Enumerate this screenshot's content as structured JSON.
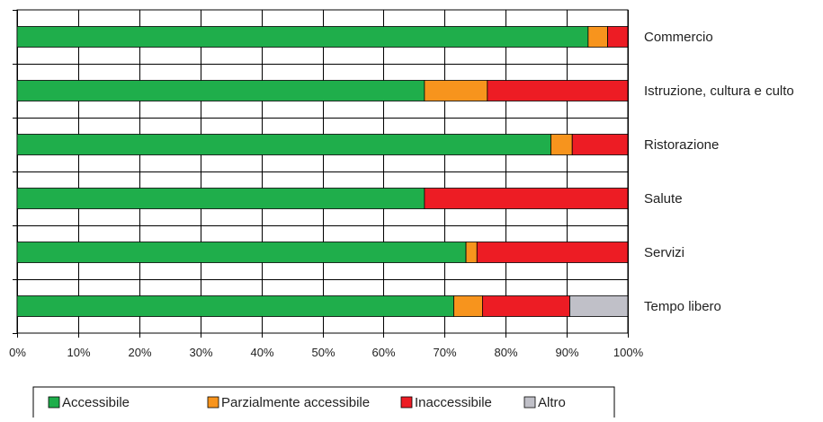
{
  "chart_data": {
    "type": "bar",
    "orientation": "horizontal",
    "stacked": true,
    "percent_stacked": true,
    "title": "",
    "xlabel": "",
    "ylabel": "",
    "xlim": [
      0,
      100
    ],
    "x_ticks": [
      "0%",
      "10%",
      "20%",
      "30%",
      "40%",
      "50%",
      "60%",
      "70%",
      "80%",
      "90%",
      "100%"
    ],
    "grid": {
      "vertical": true,
      "horizontal": true
    },
    "legend_position": "bottom",
    "category_label_position": "right",
    "categories": [
      "Commercio",
      "Istruzione, cultura e culto",
      "Ristorazione",
      "Salute",
      "Servizi",
      "Tempo libero"
    ],
    "series": [
      {
        "name": "Accessibile",
        "color": "#1fae4b",
        "values": [
          93.5,
          66.7,
          87.4,
          66.7,
          73.5,
          71.5
        ]
      },
      {
        "name": "Parzialmente accessibile",
        "color": "#f7941d",
        "values": [
          3.2,
          10.3,
          3.5,
          0.0,
          1.8,
          4.7
        ]
      },
      {
        "name": "Inaccessibile",
        "color": "#ed1c24",
        "values": [
          3.3,
          23.0,
          9.1,
          33.3,
          24.7,
          14.3
        ]
      },
      {
        "name": "Altro",
        "color": "#c0c0c8",
        "values": [
          0.0,
          0.0,
          0.0,
          0.0,
          0.0,
          9.5
        ]
      }
    ]
  }
}
